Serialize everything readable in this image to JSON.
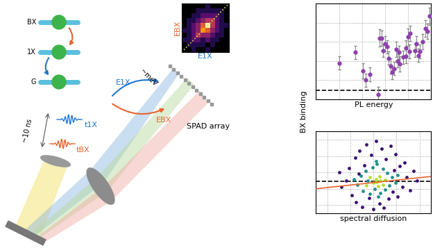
{
  "diagram": {
    "levels": [
      "BX",
      "1X",
      "G"
    ],
    "delay_label": "~10 ns",
    "photon_labels": [
      "t1X",
      "tBX"
    ],
    "energy_labels": [
      "E1X",
      "EBX"
    ],
    "splitting_label": "~meV",
    "detector_label": "SPAD array",
    "correlation_map": {
      "x_label": "E1X",
      "y_label": "EBX",
      "cells": [
        [
          1,
          1,
          2,
          1,
          1,
          2,
          1,
          1,
          1,
          1
        ],
        [
          1,
          2,
          2,
          2,
          2,
          1,
          2,
          1,
          1,
          1
        ],
        [
          2,
          2,
          3,
          3,
          2,
          3,
          2,
          2,
          1,
          1
        ],
        [
          1,
          2,
          3,
          5,
          4,
          4,
          3,
          2,
          2,
          1
        ],
        [
          2,
          2,
          3,
          4,
          7,
          6,
          4,
          3,
          2,
          1
        ],
        [
          1,
          2,
          3,
          4,
          6,
          9,
          5,
          3,
          2,
          2
        ],
        [
          1,
          2,
          2,
          3,
          4,
          5,
          5,
          3,
          2,
          1
        ],
        [
          1,
          1,
          2,
          2,
          3,
          3,
          3,
          3,
          2,
          1
        ],
        [
          1,
          1,
          1,
          2,
          2,
          2,
          2,
          2,
          2,
          1
        ],
        [
          1,
          1,
          1,
          1,
          1,
          2,
          1,
          1,
          1,
          1
        ]
      ]
    }
  },
  "shared_y_label": "BX binding",
  "chart_data": [
    {
      "type": "scatter",
      "x_label": "PL energy",
      "tick_labels": false,
      "grid": true,
      "xlim": [
        0,
        10
      ],
      "ylim": [
        0,
        10
      ],
      "xticks": [
        0,
        2,
        4,
        6,
        8,
        10
      ],
      "yticks": [
        0,
        2,
        4,
        6,
        8,
        10
      ],
      "reference_line": 0.9,
      "marker": "o",
      "color": "#8e3fae",
      "x": [
        2.0,
        3.4,
        4.1,
        4.3,
        4.7,
        5.4,
        5.5,
        5.7,
        5.8,
        6.0,
        6.2,
        6.3,
        6.5,
        6.6,
        6.8,
        7.0,
        7.1,
        7.2,
        7.3,
        7.6,
        7.8,
        7.8,
        8.0,
        8.1,
        8.2,
        8.6,
        8.7,
        9.0,
        9.3,
        9.5,
        9.7,
        9.9,
        8.9
      ],
      "values": [
        3.8,
        4.9,
        3.0,
        2.0,
        2.6,
        0.5,
        6.4,
        6.4,
        5.1,
        5.8,
        5.5,
        4.3,
        3.5,
        2.8,
        3.2,
        5.2,
        4.0,
        4.9,
        3.7,
        4.4,
        4.5,
        5.4,
        6.5,
        5.0,
        6.9,
        5.1,
        5.8,
        5.0,
        6.0,
        7.4,
        7.1,
        8.7,
        4.6
      ],
      "errors": [
        0.7,
        0.7,
        0.8,
        0.7,
        0.7,
        0.8,
        0.9,
        0.8,
        0.7,
        0.8,
        0.7,
        0.7,
        0.8,
        0.7,
        0.7,
        0.8,
        0.7,
        0.7,
        0.8,
        0.7,
        0.7,
        0.8,
        0.9,
        0.7,
        0.8,
        0.7,
        0.8,
        0.7,
        0.8,
        0.9,
        0.8,
        0.9,
        0.7
      ]
    },
    {
      "type": "scatter",
      "x_label": "spectral diffusion",
      "tick_labels": false,
      "grid": true,
      "xlim": [
        -5,
        5
      ],
      "ylim": [
        -5,
        5
      ],
      "xticks": [
        -4,
        -2,
        0,
        2,
        4
      ],
      "yticks": [
        -4,
        -2,
        0,
        2,
        4
      ],
      "reference_line": -1.1,
      "marker": "o",
      "fit": {
        "x": [
          -5,
          5
        ],
        "values": [
          -2.0,
          -0.5
        ],
        "color": "#e8632b"
      },
      "series": [
        {
          "color": "#3b0f70",
          "x": [
            -2.4,
            -2.1,
            -1.9,
            -1.6,
            -1.5,
            -1.2,
            -1.0,
            -0.8,
            -0.6,
            -0.4,
            -0.2,
            0.0,
            0.2,
            0.5,
            0.7,
            0.9,
            1.1,
            1.3,
            1.5,
            1.7,
            1.9,
            2.1,
            2.3,
            2.5,
            2.7,
            2.9,
            3.2,
            3.5,
            -2.8,
            -3.0,
            3.8,
            -1.3,
            1.8
          ],
          "values": [
            -1.0,
            0.5,
            -2.8,
            1.8,
            -3.6,
            2.6,
            -4.2,
            0.9,
            3.4,
            -3.1,
            2.1,
            -4.5,
            3.8,
            -3.8,
            2.9,
            -4.3,
            1.6,
            -3.2,
            3.2,
            -2.4,
            2.2,
            -3.0,
            0.8,
            -1.8,
            1.2,
            -0.6,
            -2.2,
            0.2,
            -1.8,
            0.0,
            -1.0,
            -0.2,
            0.3
          ]
        },
        {
          "color": "#21918c",
          "x": [
            -1.4,
            -1.1,
            -0.9,
            -0.7,
            -0.5,
            -0.3,
            -0.1,
            0.1,
            0.3,
            0.6,
            0.8,
            1.0,
            1.2,
            1.4,
            1.6,
            1.9,
            2.1,
            -1.7,
            0.4,
            0.2
          ],
          "values": [
            -1.5,
            -0.4,
            -2.3,
            0.2,
            -1.0,
            -2.6,
            0.6,
            -2.0,
            1.0,
            -2.5,
            0.4,
            -2.1,
            -0.1,
            -1.6,
            -0.6,
            -1.3,
            -0.3,
            -0.8,
            -3.0,
            1.4
          ]
        },
        {
          "color": "#b5de2b",
          "x": [
            -0.6,
            -0.3,
            0.0,
            0.2,
            0.4,
            0.6,
            0.8,
            1.0,
            0.3,
            0.5
          ],
          "values": [
            -1.6,
            -0.6,
            -1.3,
            -0.8,
            -1.7,
            -1.0,
            -1.5,
            -0.9,
            -1.2,
            -0.5
          ]
        }
      ]
    }
  ]
}
